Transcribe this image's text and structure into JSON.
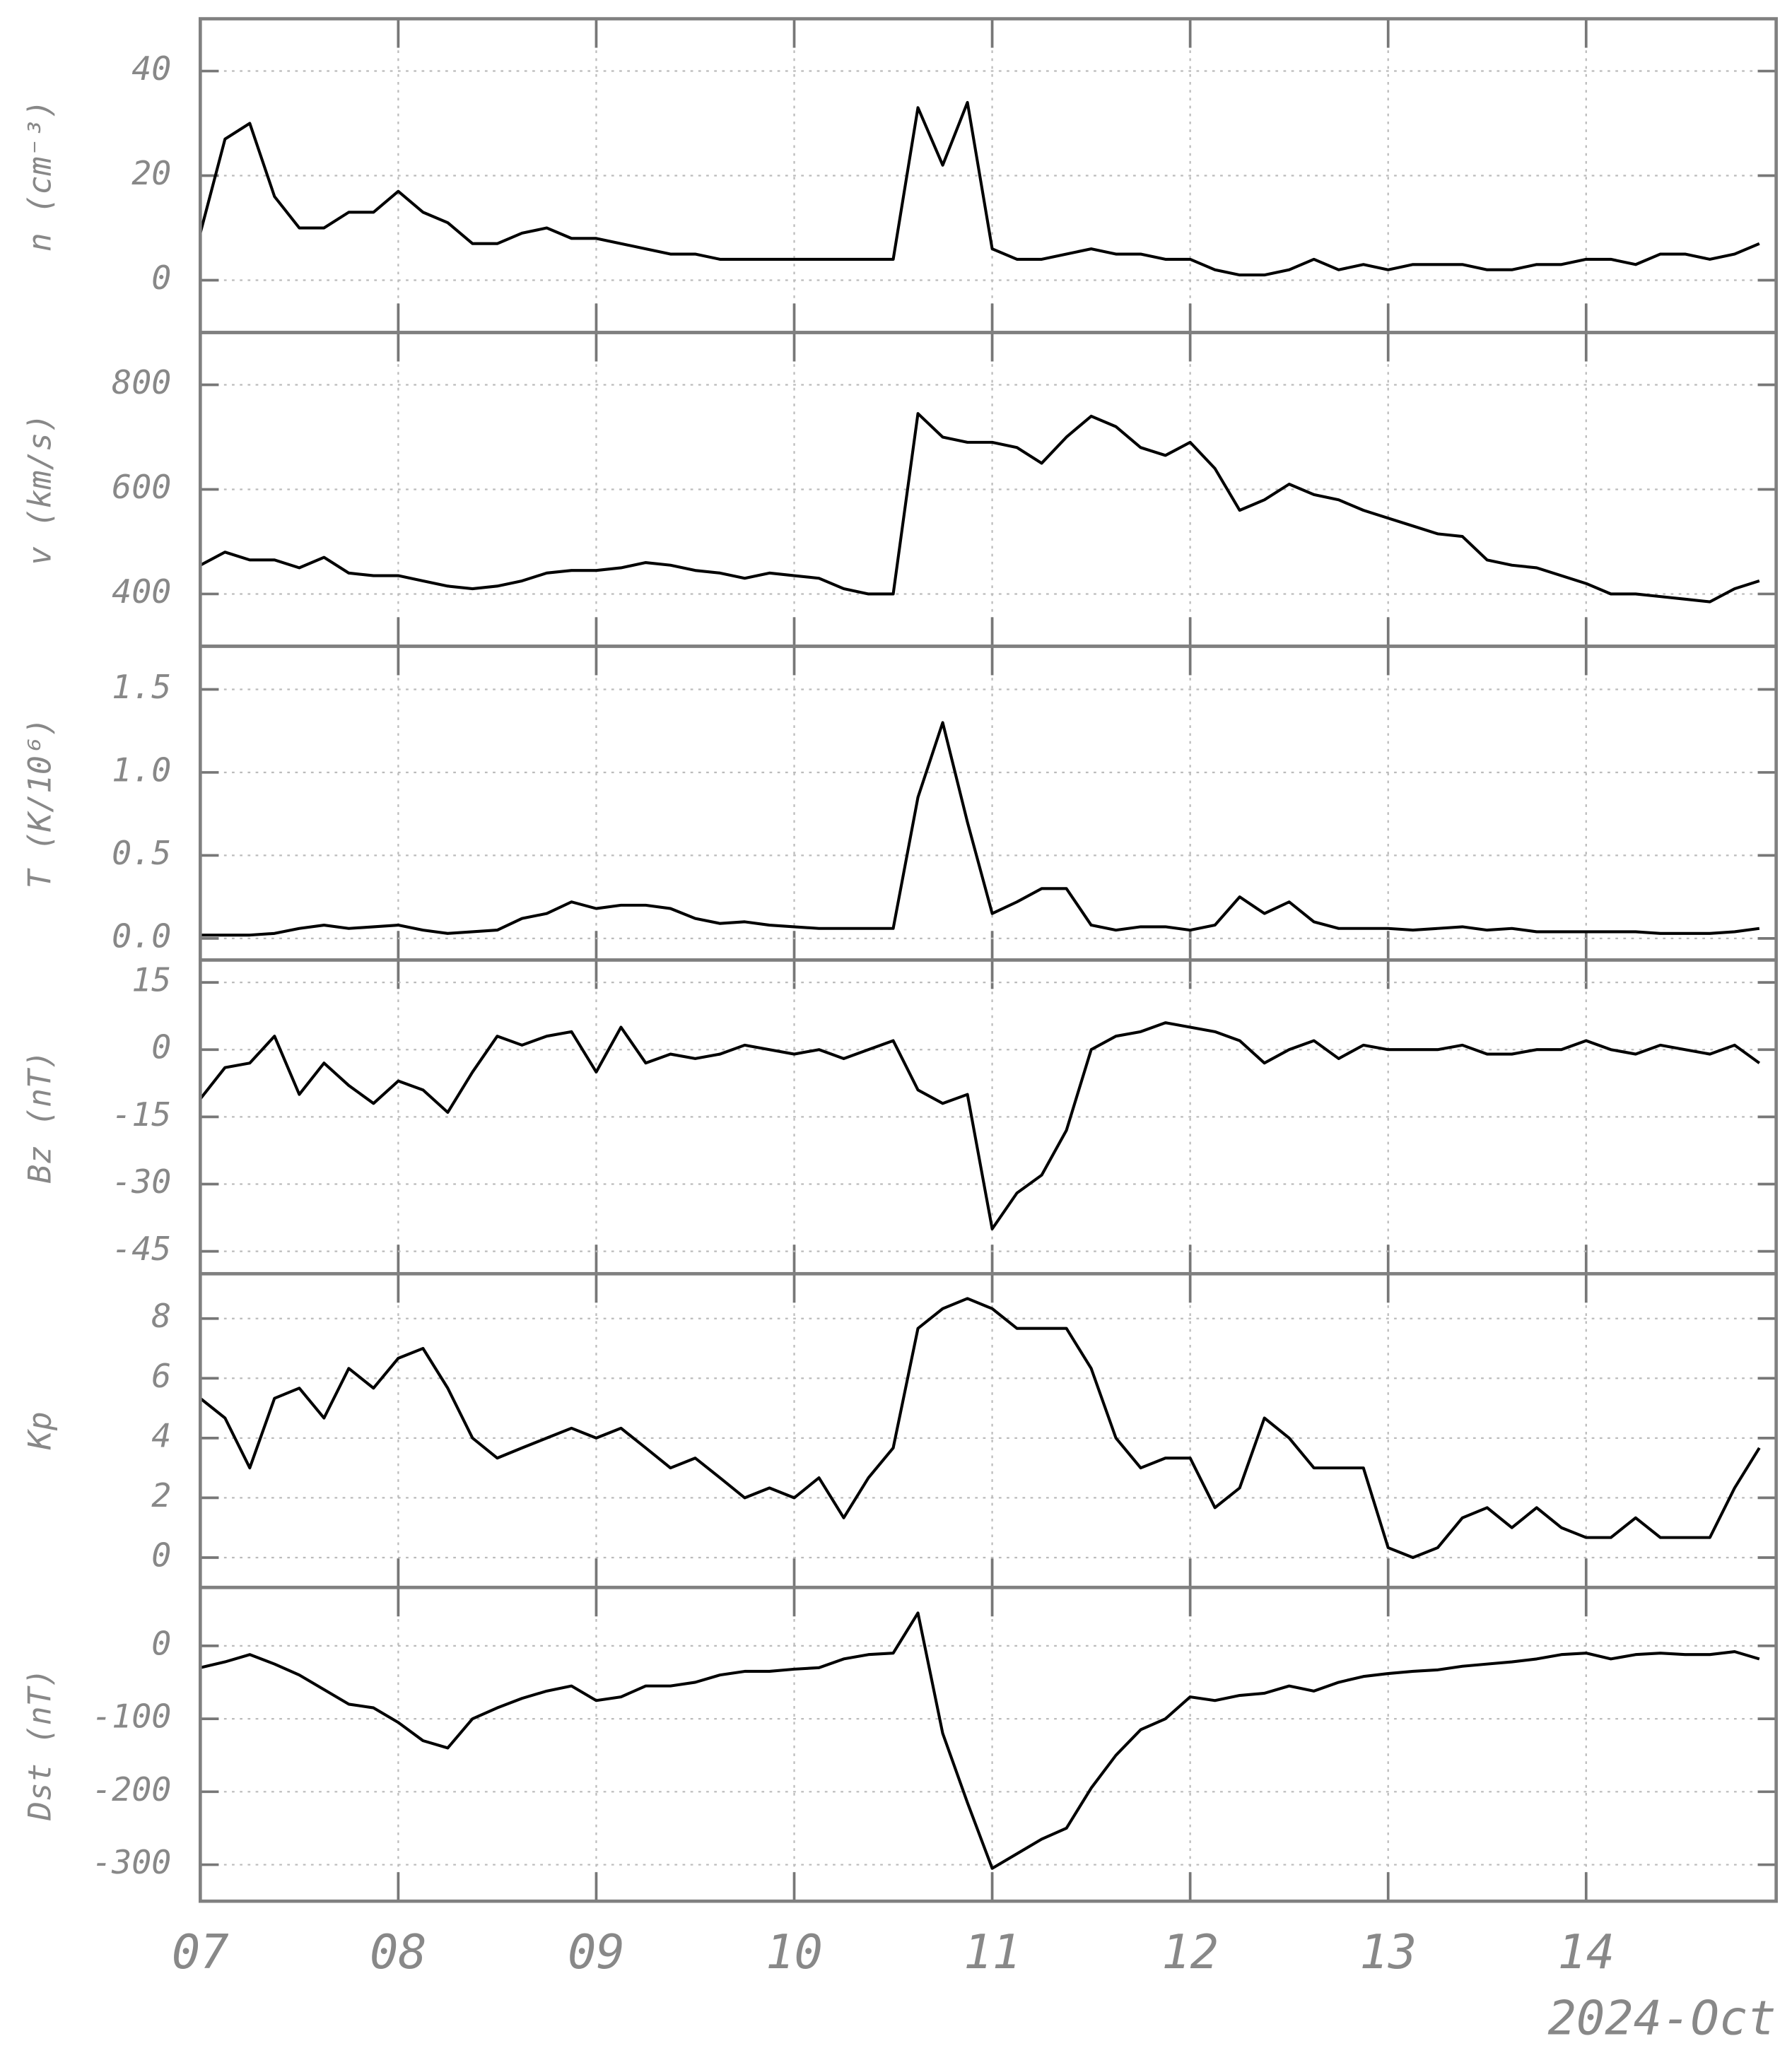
{
  "chart_data": [
    {
      "type": "line",
      "ylabel": "n (cm⁻³)",
      "color": "#000000",
      "grid": true,
      "x": [
        7,
        7.125,
        7.25,
        7.375,
        7.5,
        7.625,
        7.75,
        7.875,
        8,
        8.125,
        8.25,
        8.375,
        8.5,
        8.625,
        8.75,
        8.875,
        9,
        9.125,
        9.25,
        9.375,
        9.5,
        9.625,
        9.75,
        9.875,
        10,
        10.125,
        10.25,
        10.375,
        10.5,
        10.625,
        10.75,
        10.875,
        11,
        11.125,
        11.25,
        11.375,
        11.5,
        11.625,
        11.75,
        11.875,
        12,
        12.125,
        12.25,
        12.375,
        12.5,
        12.625,
        12.75,
        12.875,
        13,
        13.125,
        13.25,
        13.375,
        13.5,
        13.625,
        13.75,
        13.875,
        14,
        14.125,
        14.25,
        14.375,
        14.5,
        14.625,
        14.75,
        14.875
      ],
      "values": [
        9,
        27,
        30,
        16,
        10,
        10,
        13,
        13,
        17,
        13,
        11,
        7,
        7,
        9,
        10,
        8,
        8,
        7,
        6,
        5,
        5,
        4,
        4,
        4,
        4,
        4,
        4,
        4,
        4,
        33,
        22,
        34,
        6,
        4,
        4,
        5,
        6,
        5,
        5,
        4,
        4,
        2,
        1,
        1,
        2,
        4,
        2,
        3,
        2,
        3,
        3,
        3,
        2,
        2,
        3,
        3,
        4,
        4,
        3,
        5,
        5,
        4,
        5,
        7
      ],
      "ylim": [
        -10,
        50
      ],
      "yticks": [
        0,
        20,
        40
      ]
    },
    {
      "type": "line",
      "ylabel": "v (km/s)",
      "color": "#000000",
      "grid": true,
      "x": [
        7,
        7.125,
        7.25,
        7.375,
        7.5,
        7.625,
        7.75,
        7.875,
        8,
        8.125,
        8.25,
        8.375,
        8.5,
        8.625,
        8.75,
        8.875,
        9,
        9.125,
        9.25,
        9.375,
        9.5,
        9.625,
        9.75,
        9.875,
        10,
        10.125,
        10.25,
        10.375,
        10.5,
        10.625,
        10.75,
        10.875,
        11,
        11.125,
        11.25,
        11.375,
        11.5,
        11.625,
        11.75,
        11.875,
        12,
        12.125,
        12.25,
        12.375,
        12.5,
        12.625,
        12.75,
        12.875,
        13,
        13.125,
        13.25,
        13.375,
        13.5,
        13.625,
        13.75,
        13.875,
        14,
        14.125,
        14.25,
        14.375,
        14.5,
        14.625,
        14.75,
        14.875
      ],
      "values": [
        455,
        480,
        465,
        465,
        450,
        470,
        440,
        435,
        435,
        425,
        415,
        410,
        415,
        425,
        440,
        445,
        445,
        450,
        460,
        455,
        445,
        440,
        430,
        440,
        435,
        430,
        410,
        400,
        400,
        745,
        700,
        690,
        690,
        680,
        650,
        700,
        740,
        720,
        680,
        665,
        690,
        640,
        560,
        580,
        610,
        590,
        580,
        560,
        545,
        530,
        515,
        510,
        465,
        455,
        450,
        435,
        420,
        400,
        400,
        395,
        390,
        385,
        410,
        425
      ],
      "ylim": [
        300,
        900
      ],
      "yticks": [
        400,
        600,
        800
      ]
    },
    {
      "type": "line",
      "ylabel": "T (K/10⁶)",
      "color": "#000000",
      "grid": true,
      "x": [
        7,
        7.125,
        7.25,
        7.375,
        7.5,
        7.625,
        7.75,
        7.875,
        8,
        8.125,
        8.25,
        8.375,
        8.5,
        8.625,
        8.75,
        8.875,
        9,
        9.125,
        9.25,
        9.375,
        9.5,
        9.625,
        9.75,
        9.875,
        10,
        10.125,
        10.25,
        10.375,
        10.5,
        10.625,
        10.75,
        10.875,
        11,
        11.125,
        11.25,
        11.375,
        11.5,
        11.625,
        11.75,
        11.875,
        12,
        12.125,
        12.25,
        12.375,
        12.5,
        12.625,
        12.75,
        12.875,
        13,
        13.125,
        13.25,
        13.375,
        13.5,
        13.625,
        13.75,
        13.875,
        14,
        14.125,
        14.25,
        14.375,
        14.5,
        14.625,
        14.75,
        14.875
      ],
      "values": [
        0.02,
        0.02,
        0.02,
        0.03,
        0.06,
        0.08,
        0.06,
        0.07,
        0.08,
        0.05,
        0.03,
        0.04,
        0.05,
        0.12,
        0.15,
        0.22,
        0.18,
        0.2,
        0.2,
        0.18,
        0.12,
        0.09,
        0.1,
        0.08,
        0.07,
        0.06,
        0.06,
        0.06,
        0.06,
        0.85,
        1.3,
        0.7,
        0.15,
        0.22,
        0.3,
        0.3,
        0.08,
        0.05,
        0.07,
        0.07,
        0.05,
        0.08,
        0.25,
        0.15,
        0.22,
        0.1,
        0.06,
        0.06,
        0.06,
        0.05,
        0.06,
        0.07,
        0.05,
        0.06,
        0.04,
        0.04,
        0.04,
        0.04,
        0.04,
        0.03,
        0.03,
        0.03,
        0.04,
        0.06
      ],
      "ylim": [
        -0.13,
        1.76
      ],
      "yticks": [
        {
          "value": 0,
          "label": "0.0"
        },
        {
          "value": 0.5,
          "label": "0.5"
        },
        {
          "value": 1,
          "label": "1.0"
        },
        {
          "value": 1.5,
          "label": "1.5"
        }
      ]
    },
    {
      "type": "line",
      "ylabel": "Bz (nT)",
      "color": "#000000",
      "grid": true,
      "x": [
        7,
        7.125,
        7.25,
        7.375,
        7.5,
        7.625,
        7.75,
        7.875,
        8,
        8.125,
        8.25,
        8.375,
        8.5,
        8.625,
        8.75,
        8.875,
        9,
        9.125,
        9.25,
        9.375,
        9.5,
        9.625,
        9.75,
        9.875,
        10,
        10.125,
        10.25,
        10.375,
        10.5,
        10.625,
        10.75,
        10.875,
        11,
        11.125,
        11.25,
        11.375,
        11.5,
        11.625,
        11.75,
        11.875,
        12,
        12.125,
        12.25,
        12.375,
        12.5,
        12.625,
        12.75,
        12.875,
        13,
        13.125,
        13.25,
        13.375,
        13.5,
        13.625,
        13.75,
        13.875,
        14,
        14.125,
        14.25,
        14.375,
        14.5,
        14.625,
        14.75,
        14.875
      ],
      "values": [
        -11,
        -4,
        -3,
        3,
        -10,
        -3,
        -8,
        -12,
        -7,
        -9,
        -14,
        -5,
        3,
        1,
        3,
        4,
        -5,
        5,
        -3,
        -1,
        -2,
        -1,
        1,
        0,
        -1,
        0,
        -2,
        0,
        2,
        -9,
        -12,
        -10,
        -40,
        -32,
        -28,
        -18,
        0,
        3,
        4,
        6,
        5,
        4,
        2,
        -3,
        0,
        2,
        -2,
        1,
        0,
        0,
        0,
        1,
        -1,
        -1,
        0,
        0,
        2,
        0,
        -1,
        1,
        0,
        -1,
        1,
        -3
      ],
      "ylim": [
        -50,
        20
      ],
      "yticks": [
        15,
        0,
        -15,
        -30,
        -45
      ]
    },
    {
      "type": "line",
      "ylabel": "Kp",
      "color": "#000000",
      "grid": true,
      "x": [
        7,
        7.125,
        7.25,
        7.375,
        7.5,
        7.625,
        7.75,
        7.875,
        8,
        8.125,
        8.25,
        8.375,
        8.5,
        8.625,
        8.75,
        8.875,
        9,
        9.125,
        9.25,
        9.375,
        9.5,
        9.625,
        9.75,
        9.875,
        10,
        10.125,
        10.25,
        10.375,
        10.5,
        10.625,
        10.75,
        10.875,
        11,
        11.125,
        11.25,
        11.375,
        11.5,
        11.625,
        11.75,
        11.875,
        12,
        12.125,
        12.25,
        12.375,
        12.5,
        12.625,
        12.75,
        12.875,
        13,
        13.125,
        13.25,
        13.375,
        13.5,
        13.625,
        13.75,
        13.875,
        14,
        14.125,
        14.25,
        14.375,
        14.5,
        14.625,
        14.75,
        14.875
      ],
      "values": [
        5.33,
        4.67,
        3,
        5.33,
        5.67,
        4.67,
        6.33,
        5.67,
        6.67,
        7,
        5.67,
        4,
        3.33,
        3.67,
        4,
        4.33,
        4,
        4.33,
        3.67,
        3,
        3.33,
        2.67,
        2,
        2.33,
        2,
        2.67,
        1.33,
        2.67,
        3.67,
        7.67,
        8.33,
        8.67,
        8.33,
        7.67,
        7.67,
        7.67,
        6.33,
        4,
        3,
        3.33,
        3.33,
        1.67,
        2.33,
        4.67,
        4,
        3,
        3,
        3,
        0.33,
        0,
        0.33,
        1.33,
        1.67,
        1,
        1.67,
        1,
        0.67,
        0.67,
        1.33,
        0.67,
        0.67,
        0.67,
        2.33,
        3.67
      ],
      "ylim": [
        -1,
        9.5
      ],
      "yticks": [
        0,
        2,
        4,
        6,
        8
      ]
    },
    {
      "type": "line",
      "ylabel": "Dst (nT)",
      "color": "#000000",
      "grid": true,
      "x": [
        7,
        7.125,
        7.25,
        7.375,
        7.5,
        7.625,
        7.75,
        7.875,
        8,
        8.125,
        8.25,
        8.375,
        8.5,
        8.625,
        8.75,
        8.875,
        9,
        9.125,
        9.25,
        9.375,
        9.5,
        9.625,
        9.75,
        9.875,
        10,
        10.125,
        10.25,
        10.375,
        10.5,
        10.625,
        10.75,
        10.875,
        11,
        11.125,
        11.25,
        11.375,
        11.5,
        11.625,
        11.75,
        11.875,
        12,
        12.125,
        12.25,
        12.375,
        12.5,
        12.625,
        12.75,
        12.875,
        13,
        13.125,
        13.25,
        13.375,
        13.5,
        13.625,
        13.75,
        13.875,
        14,
        14.125,
        14.25,
        14.375,
        14.5,
        14.625,
        14.75,
        14.875
      ],
      "values": [
        -30,
        -22,
        -12,
        -25,
        -40,
        -60,
        -80,
        -85,
        -105,
        -130,
        -140,
        -100,
        -85,
        -72,
        -62,
        -55,
        -75,
        -70,
        -55,
        -55,
        -50,
        -40,
        -35,
        -35,
        -32,
        -30,
        -18,
        -12,
        -10,
        45,
        -120,
        -215,
        -305,
        -285,
        -265,
        -250,
        -195,
        -150,
        -115,
        -100,
        -70,
        -75,
        -68,
        -65,
        -55,
        -62,
        -50,
        -42,
        -38,
        -35,
        -33,
        -28,
        -25,
        -22,
        -18,
        -12,
        -10,
        -18,
        -12,
        -10,
        -12,
        -12,
        -8,
        -18
      ],
      "ylim": [
        -350,
        80
      ],
      "yticks": [
        0,
        -100,
        -200,
        -300
      ],
      "xlim": [
        7,
        14.96
      ],
      "xlabel": "2024-Oct",
      "xticks": [
        {
          "value": 7,
          "label": "07"
        },
        {
          "value": 8,
          "label": "08"
        },
        {
          "value": 9,
          "label": "09"
        },
        {
          "value": 10,
          "label": "10"
        },
        {
          "value": 11,
          "label": "11"
        },
        {
          "value": 12,
          "label": "12"
        },
        {
          "value": 13,
          "label": "13"
        },
        {
          "value": 14,
          "label": "14"
        }
      ]
    }
  ]
}
